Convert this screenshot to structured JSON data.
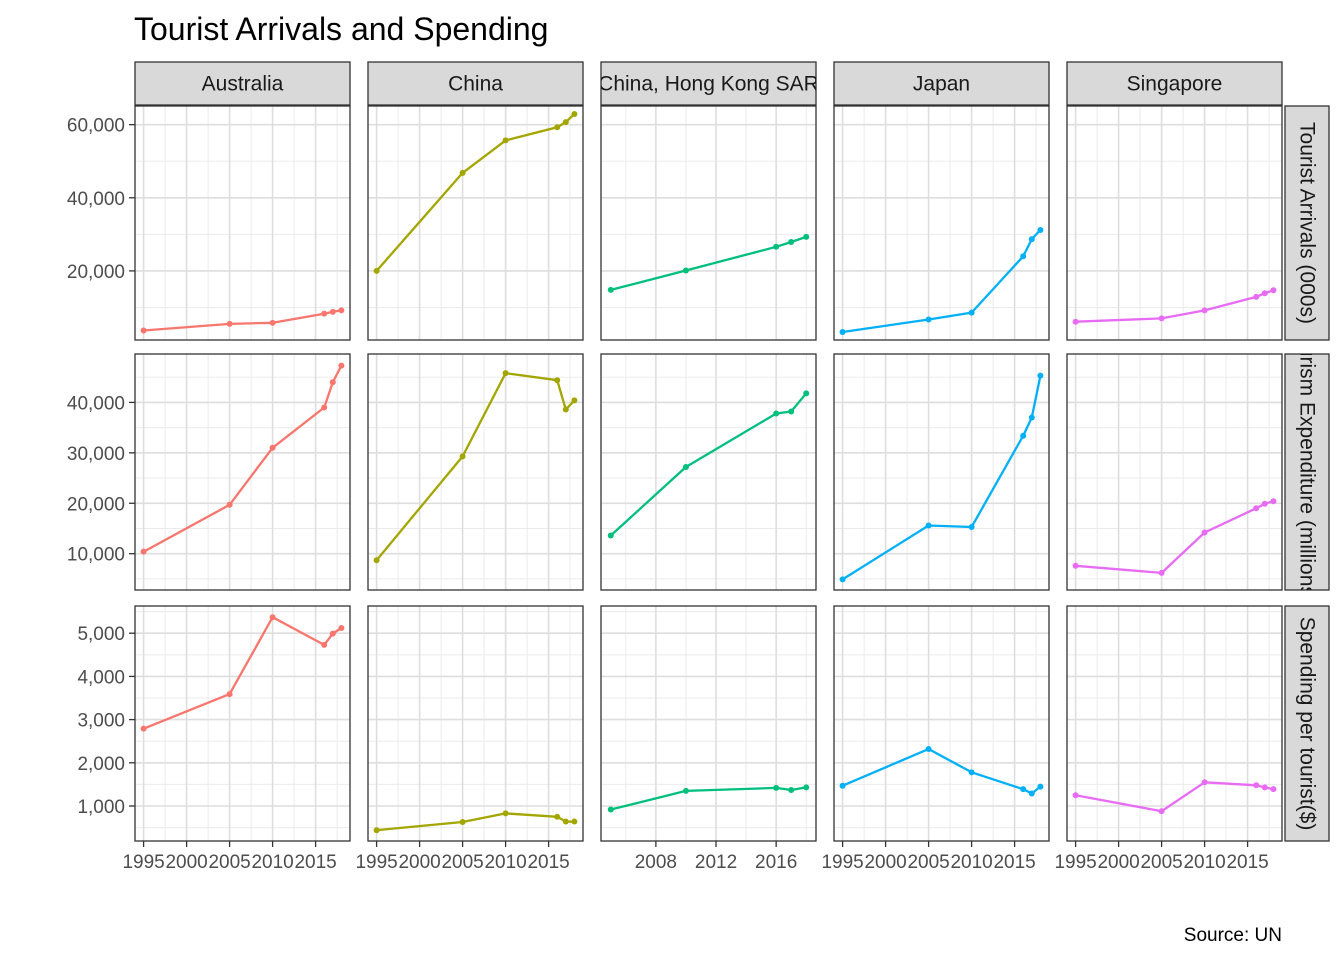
{
  "chart_data": {
    "type": "line",
    "title": "Tourist Arrivals and Spending",
    "caption": "Source: UN",
    "grid": true,
    "legend": "none",
    "columns": [
      "Australia",
      "China",
      "China, Hong Kong SAR",
      "Japan",
      "Singapore"
    ],
    "rows": [
      "Tourist Arrivals (000s)",
      "Tourism Expenditure (millions $)",
      "Spending per tourist($)"
    ],
    "colors": {
      "Australia": "#F8766D",
      "China": "#A3A500",
      "China, Hong Kong SAR": "#00BF7D",
      "Japan": "#00B0F6",
      "Singapore": "#E76BF3"
    },
    "x_axes": [
      {
        "column": "Australia",
        "xlim": [
          1994,
          2019
        ],
        "ticks": [
          1995,
          2000,
          2005,
          2010,
          2015
        ],
        "tick_labels": [
          "1995",
          "2000",
          "2005",
          "2010",
          "2015"
        ]
      },
      {
        "column": "China",
        "xlim": [
          1994,
          2019
        ],
        "ticks": [
          1995,
          2000,
          2005,
          2010,
          2015
        ],
        "tick_labels": [
          "1995",
          "2000",
          "2005",
          "2010",
          "2015"
        ]
      },
      {
        "column": "China, Hong Kong SAR",
        "xlim": [
          2004.35,
          2018.65
        ],
        "ticks": [
          2008,
          2012,
          2016
        ],
        "tick_labels": [
          "2008",
          "2012",
          "2016"
        ]
      },
      {
        "column": "Japan",
        "xlim": [
          1994,
          2019
        ],
        "ticks": [
          1995,
          2000,
          2005,
          2010,
          2015
        ],
        "tick_labels": [
          "1995",
          "2000",
          "2005",
          "2010",
          "2015"
        ]
      },
      {
        "column": "Singapore",
        "xlim": [
          1994,
          2019
        ],
        "ticks": [
          1995,
          2000,
          2005,
          2010,
          2015
        ],
        "tick_labels": [
          "1995",
          "2000",
          "2005",
          "2010",
          "2015"
        ]
      }
    ],
    "y_axes": [
      {
        "row": "Tourist Arrivals (000s)",
        "ylim": [
          1100,
          65100
        ],
        "ticks": [
          20000,
          40000,
          60000
        ],
        "tick_labels": [
          "20,000",
          "40,000",
          "60,000"
        ]
      },
      {
        "row": "Tourism Expenditure (millions $)",
        "ylim": [
          2800,
          49600
        ],
        "ticks": [
          10000,
          20000,
          30000,
          40000
        ],
        "tick_labels": [
          "10,000",
          "20,000",
          "30,000",
          "40,000"
        ]
      },
      {
        "row": "Spending per tourist($)",
        "ylim": [
          190,
          5630
        ],
        "ticks": [
          1000,
          2000,
          3000,
          4000,
          5000
        ],
        "tick_labels": [
          "1,000",
          "2,000",
          "3,000",
          "4,000",
          "5,000"
        ]
      }
    ],
    "series": [
      {
        "column": "Australia",
        "row": "Tourist Arrivals (000s)",
        "x": [
          1995,
          2005,
          2010,
          2016,
          2017,
          2018
        ],
        "y": [
          3700,
          5500,
          5800,
          8300,
          8800,
          9200
        ]
      },
      {
        "column": "Australia",
        "row": "Tourism Expenditure (millions $)",
        "x": [
          1995,
          2005,
          2010,
          2016,
          2017,
          2018
        ],
        "y": [
          10400,
          19700,
          31000,
          39000,
          44000,
          47300
        ]
      },
      {
        "column": "Australia",
        "row": "Spending per tourist($)",
        "x": [
          1995,
          2005,
          2010,
          2016,
          2017,
          2018
        ],
        "y": [
          2790,
          3590,
          5370,
          4730,
          4990,
          5120
        ]
      },
      {
        "column": "China",
        "row": "Tourist Arrivals (000s)",
        "x": [
          1995,
          2005,
          2010,
          2016,
          2017,
          2018
        ],
        "y": [
          20000,
          46800,
          55700,
          59300,
          60700,
          62900
        ]
      },
      {
        "column": "China",
        "row": "Tourism Expenditure (millions $)",
        "x": [
          1995,
          2005,
          2010,
          2016,
          2017,
          2018
        ],
        "y": [
          8700,
          29300,
          45800,
          44400,
          38600,
          40400
        ]
      },
      {
        "column": "China",
        "row": "Spending per tourist($)",
        "x": [
          1995,
          2005,
          2010,
          2016,
          2017,
          2018
        ],
        "y": [
          440,
          630,
          830,
          750,
          640,
          640
        ]
      },
      {
        "column": "China, Hong Kong SAR",
        "row": "Tourist Arrivals (000s)",
        "x": [
          2005,
          2010,
          2016,
          2017,
          2018
        ],
        "y": [
          14800,
          20100,
          26600,
          27900,
          29300
        ]
      },
      {
        "column": "China, Hong Kong SAR",
        "row": "Tourism Expenditure (millions $)",
        "x": [
          2005,
          2010,
          2016,
          2017,
          2018
        ],
        "y": [
          13600,
          27200,
          37800,
          38200,
          41800
        ]
      },
      {
        "column": "China, Hong Kong SAR",
        "row": "Spending per tourist($)",
        "x": [
          2005,
          2010,
          2016,
          2017,
          2018
        ],
        "y": [
          920,
          1350,
          1420,
          1370,
          1430
        ]
      },
      {
        "column": "Japan",
        "row": "Tourist Arrivals (000s)",
        "x": [
          1995,
          2005,
          2010,
          2016,
          2017,
          2018
        ],
        "y": [
          3300,
          6700,
          8600,
          24000,
          28700,
          31200
        ]
      },
      {
        "column": "Japan",
        "row": "Tourism Expenditure (millions $)",
        "x": [
          1995,
          2005,
          2010,
          2016,
          2017,
          2018
        ],
        "y": [
          4900,
          15600,
          15300,
          33400,
          37000,
          45300
        ]
      },
      {
        "column": "Japan",
        "row": "Spending per tourist($)",
        "x": [
          1995,
          2005,
          2010,
          2016,
          2017,
          2018
        ],
        "y": [
          1470,
          2320,
          1780,
          1390,
          1290,
          1450
        ]
      },
      {
        "column": "Singapore",
        "row": "Tourist Arrivals (000s)",
        "x": [
          1995,
          2005,
          2010,
          2016,
          2017,
          2018
        ],
        "y": [
          6100,
          7000,
          9200,
          12900,
          13900,
          14700
        ]
      },
      {
        "column": "Singapore",
        "row": "Tourism Expenditure (millions $)",
        "x": [
          1995,
          2005,
          2010,
          2016,
          2017,
          2018
        ],
        "y": [
          7600,
          6200,
          14200,
          19000,
          19900,
          20400
        ]
      },
      {
        "column": "Singapore",
        "row": "Spending per tourist($)",
        "x": [
          1995,
          2005,
          2010,
          2016,
          2017,
          2018
        ],
        "y": [
          1250,
          880,
          1550,
          1480,
          1430,
          1390
        ]
      }
    ]
  }
}
